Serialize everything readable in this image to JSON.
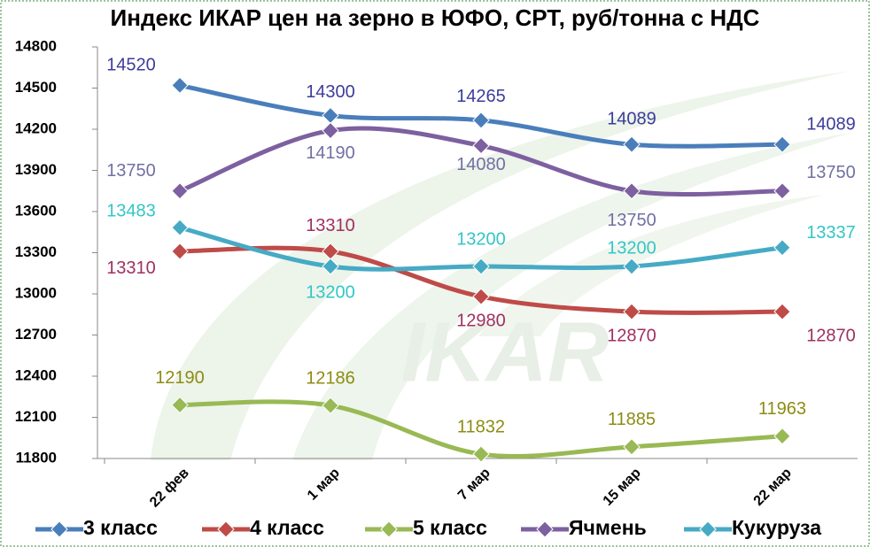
{
  "chart_data": {
    "type": "line",
    "title": "Индекс ИКАР цен на зерно в ЮФО, СРТ, руб/тонна с НДС",
    "watermark": "IKAR",
    "categories": [
      "22 фев",
      "1 мар",
      "7 мар",
      "15 мар",
      "22 мар"
    ],
    "series": [
      {
        "name": "3 класс",
        "color": "#4a7ebb",
        "label_color": "#3c3c9c",
        "values": [
          14520,
          14300,
          14265,
          14089,
          14089
        ]
      },
      {
        "name": "4 класс",
        "color": "#be4b48",
        "label_color": "#a03060",
        "values": [
          13310,
          13310,
          12980,
          12870,
          12870
        ]
      },
      {
        "name": "5 класс",
        "color": "#98b954",
        "label_color": "#8c8c14",
        "values": [
          12190,
          12186,
          11832,
          11885,
          11963
        ]
      },
      {
        "name": "Ячмень",
        "color": "#7d60a0",
        "label_color": "#7070a4",
        "values": [
          13750,
          14190,
          14080,
          13750,
          13750
        ]
      },
      {
        "name": "Кукуруза",
        "color": "#46aac5",
        "label_color": "#33c6c6",
        "values": [
          13483,
          13200,
          13200,
          13200,
          13337
        ]
      }
    ],
    "ylim": [
      11800,
      14800
    ],
    "yticks": [
      11800,
      12100,
      12400,
      12700,
      13000,
      13300,
      13600,
      13900,
      14200,
      14500,
      14800
    ],
    "grid": false,
    "legend": "bottom"
  }
}
